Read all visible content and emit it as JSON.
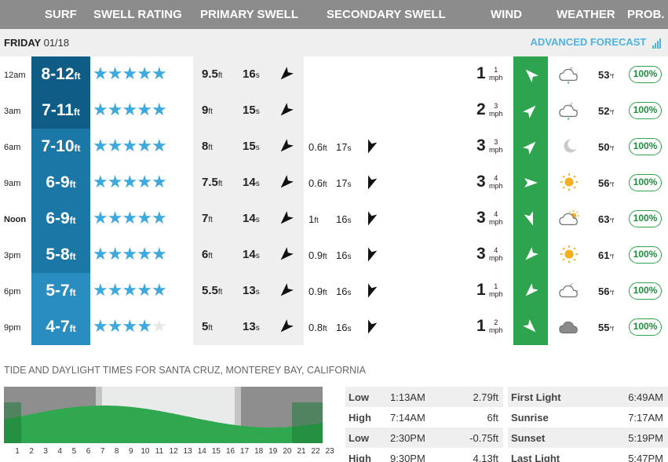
{
  "header": {
    "surf": "SURF",
    "swell_rating": "SWELL RATING",
    "primary_swell": "PRIMARY SWELL",
    "secondary_swell": "SECONDARY SWELL",
    "wind": "WIND",
    "weather": "WEATHER",
    "prob": "PROB."
  },
  "day": {
    "name": "FRIDAY",
    "date": "01/18",
    "advanced_link": "ADVANCED FORECAST"
  },
  "units": {
    "ft": "ft",
    "s": "s",
    "mph": "mph",
    "degf": "°f"
  },
  "colors": {
    "surf_dark": "#0f5d86",
    "surf_mid": "#1b78a6",
    "surf_light": "#2a8dbf",
    "wind_green": "#2ea44f",
    "star_blue": "#3ea9dd"
  },
  "forecast": [
    {
      "time": "12am",
      "surf_range": "8-12",
      "stars": 5,
      "p_height": "9.5",
      "p_period": "16",
      "p_dir": 225,
      "s_height": "",
      "s_period": "",
      "s_dir": null,
      "wind_speed": "1",
      "wind_gust": "1",
      "wind_dir": 315,
      "weather_icon": "cloud-rain-night-icon",
      "temp": "53",
      "prob": "100%"
    },
    {
      "time": "3am",
      "surf_range": "7-11",
      "stars": 5,
      "p_height": "9",
      "p_period": "15",
      "p_dir": 225,
      "s_height": "",
      "s_period": "",
      "s_dir": null,
      "wind_speed": "2",
      "wind_gust": "3",
      "wind_dir": 45,
      "weather_icon": "cloud-rain-night-icon",
      "temp": "52",
      "prob": "100%"
    },
    {
      "time": "6am",
      "surf_range": "7-10",
      "stars": 5,
      "p_height": "8",
      "p_period": "15",
      "p_dir": 225,
      "s_height": "0.6",
      "s_period": "17",
      "s_dir": 200,
      "wind_speed": "3",
      "wind_gust": "3",
      "wind_dir": 45,
      "weather_icon": "moon-icon",
      "temp": "50",
      "prob": "100%"
    },
    {
      "time": "9am",
      "surf_range": "6-9",
      "stars": 5,
      "p_height": "7.5",
      "p_period": "14",
      "p_dir": 225,
      "s_height": "0.6",
      "s_period": "17",
      "s_dir": 200,
      "wind_speed": "3",
      "wind_gust": "4",
      "wind_dir": 90,
      "weather_icon": "sun-icon",
      "temp": "56",
      "prob": "100%"
    },
    {
      "time": "Noon",
      "surf_range": "6-9",
      "stars": 5,
      "p_height": "7",
      "p_period": "14",
      "p_dir": 225,
      "s_height": "1",
      "s_period": "16",
      "s_dir": 200,
      "wind_speed": "3",
      "wind_gust": "4",
      "wind_dir": 160,
      "weather_icon": "partly-cloudy-icon",
      "temp": "63",
      "prob": "100%"
    },
    {
      "time": "3pm",
      "surf_range": "5-8",
      "stars": 5,
      "p_height": "6",
      "p_period": "14",
      "p_dir": 225,
      "s_height": "0.9",
      "s_period": "16",
      "s_dir": 200,
      "wind_speed": "3",
      "wind_gust": "4",
      "wind_dir": 225,
      "weather_icon": "sun-icon",
      "temp": "61",
      "prob": "100%"
    },
    {
      "time": "6pm",
      "surf_range": "5-7",
      "stars": 5,
      "p_height": "5.5",
      "p_period": "13",
      "p_dir": 225,
      "s_height": "0.9",
      "s_period": "16",
      "s_dir": 200,
      "wind_speed": "1",
      "wind_gust": "1",
      "wind_dir": 225,
      "weather_icon": "cloud-night-icon",
      "temp": "56",
      "prob": "100%"
    },
    {
      "time": "9pm",
      "surf_range": "4-7",
      "stars": 4,
      "p_height": "5",
      "p_period": "13",
      "p_dir": 225,
      "s_height": "0.8",
      "s_period": "16",
      "s_dir": 200,
      "wind_speed": "1",
      "wind_gust": "2",
      "wind_dir": 135,
      "weather_icon": "cloud-icon",
      "temp": "55",
      "prob": "100%"
    }
  ],
  "tide": {
    "title": "TIDE AND DAYLIGHT TIMES FOR SANTA CRUZ, MONTEREY BAY, CALIFORNIA",
    "hours": [
      "1",
      "2",
      "3",
      "4",
      "5",
      "6",
      "7",
      "8",
      "9",
      "10",
      "11",
      "12",
      "13",
      "14",
      "15",
      "16",
      "17",
      "18",
      "19",
      "20",
      "21",
      "22",
      "23"
    ],
    "tides": [
      {
        "type": "Low",
        "time": "1:13AM",
        "height": "2.79ft"
      },
      {
        "type": "High",
        "time": "7:14AM",
        "height": "6ft"
      },
      {
        "type": "Low",
        "time": "2:30PM",
        "height": "-0.75ft"
      },
      {
        "type": "High",
        "time": "9:30PM",
        "height": "4.13ft"
      }
    ],
    "light": [
      {
        "label": "First Light",
        "time": "6:49AM"
      },
      {
        "label": "Sunrise",
        "time": "7:17AM"
      },
      {
        "label": "Sunset",
        "time": "5:19PM"
      },
      {
        "label": "Last Light",
        "time": "5:47PM"
      }
    ]
  }
}
